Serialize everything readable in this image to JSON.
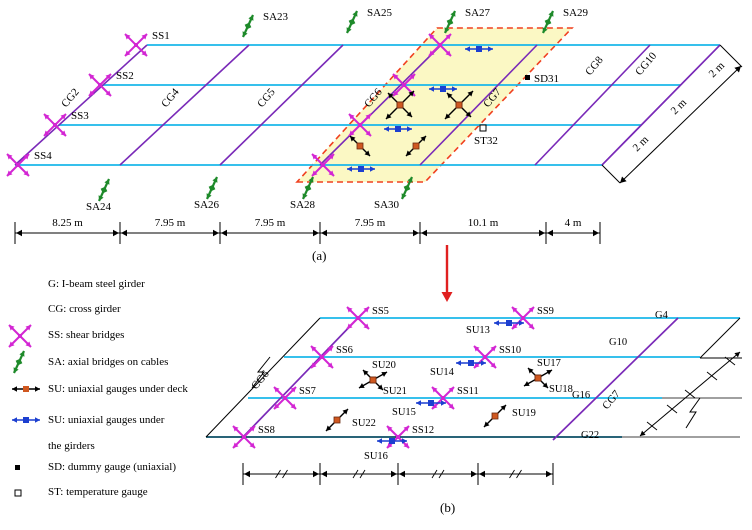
{
  "top": {
    "caption": "(a)",
    "shear_bridges": [
      "SS1",
      "SS2",
      "SS3",
      "SS4"
    ],
    "cross_girders": [
      "CG2",
      "CG4",
      "CG5",
      "CG6",
      "CG7",
      "CG8",
      "CG10"
    ],
    "axial_top": [
      "SA23",
      "SA25",
      "SA27",
      "SA29"
    ],
    "axial_bottom": [
      "SA24",
      "SA26",
      "SA28",
      "SA30"
    ],
    "dummy": "SD31",
    "temperature": "ST32",
    "spans": [
      "8.25 m",
      "7.95 m",
      "7.95 m",
      "7.95 m",
      "10.1 m",
      "4 m"
    ],
    "side_spacing": [
      "2 m",
      "2 m",
      "2 m"
    ]
  },
  "bottom": {
    "caption": "(b)",
    "shear": [
      "SS5",
      "SS6",
      "SS7",
      "SS8",
      "SS9",
      "SS10",
      "SS11",
      "SS12"
    ],
    "uniaxial_deck": [
      "SU17",
      "SU18",
      "SU19",
      "SU20",
      "SU21",
      "SU22"
    ],
    "uniaxial_girder": [
      "SU13",
      "SU14",
      "SU15",
      "SU16"
    ],
    "girders": [
      "G4",
      "G10",
      "G16",
      "G22"
    ],
    "cross": [
      "CG6",
      "CG7"
    ]
  },
  "legend": [
    {
      "symbol": "",
      "text": "G: I-beam steel girder"
    },
    {
      "symbol": "",
      "text": "CG: cross girder"
    },
    {
      "symbol": "shear-bridge",
      "text": "SS: shear bridges"
    },
    {
      "symbol": "axial-bridge",
      "text": "SA: axial bridges on cables"
    },
    {
      "symbol": "uniaxial-deck",
      "text": "SU: uniaxial gauges under deck"
    },
    {
      "symbol": "uniaxial-girder",
      "text": "SU: uniaxial gauges under"
    },
    {
      "symbol": "",
      "text": "the girders"
    },
    {
      "symbol": "dummy-square",
      "text": "SD: dummy gauge (uniaxial)"
    },
    {
      "symbol": "temp-square",
      "text": "ST: temperature gauge"
    }
  ],
  "colors": {
    "girder": "#19b7ea",
    "cross": "#7a2ab8",
    "shear": "#d326d3",
    "axial": "#1e8a2a",
    "zone_fill": "#fbf8c4",
    "zone_border": "#f04020",
    "arrow": "#e02020",
    "gauge_deck": "#d05820",
    "gauge_girder": "#1c3fd0"
  }
}
